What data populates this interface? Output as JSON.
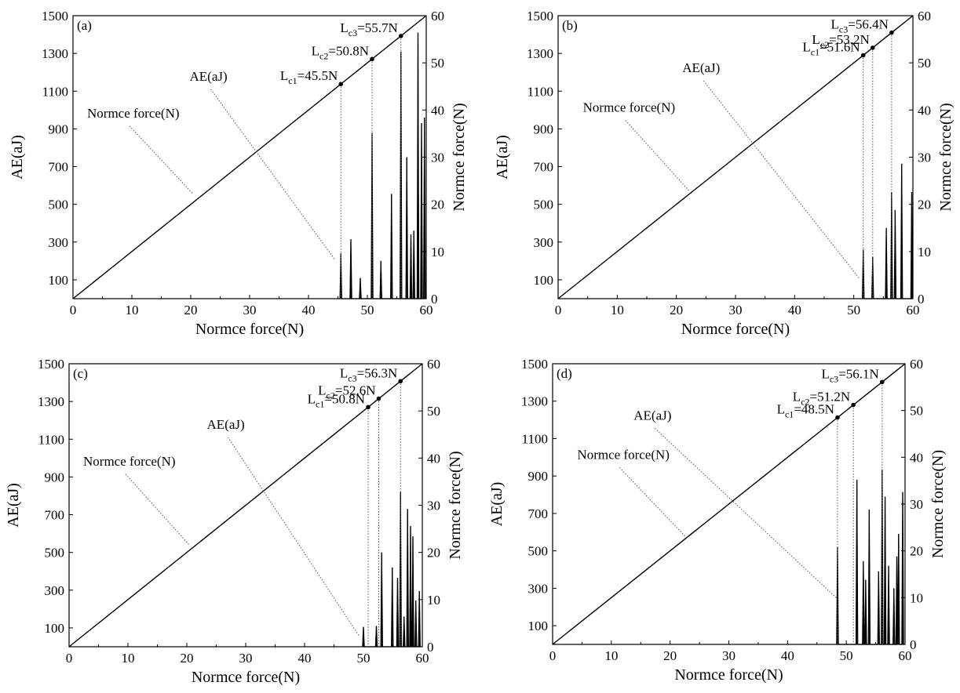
{
  "colors": {
    "line": "#000000",
    "annotation_leader": "#555555",
    "background": "#ffffff"
  },
  "chart_data": [
    {
      "panel": "(a)",
      "type": "line",
      "xlabel": "Normce force(N)",
      "ylabel_left": "AE(aJ)",
      "ylabel_right": "Normce force(N)",
      "xlim": [
        0,
        60
      ],
      "ylim_left": [
        0,
        1500
      ],
      "ylim_right": [
        0,
        60
      ],
      "xticks": [
        0,
        10,
        20,
        30,
        40,
        50,
        60
      ],
      "yticks_left": [
        100,
        300,
        500,
        700,
        900,
        1100,
        1300,
        1500
      ],
      "yticks_right": [
        0,
        10,
        20,
        30,
        40,
        50,
        60
      ],
      "grid": false,
      "annotations": {
        "force_label": "Normce force(N)",
        "ae_label": "AE(aJ)"
      },
      "critical_loads": [
        {
          "sub": "c1",
          "value": 45.5,
          "text": "=45.5N"
        },
        {
          "sub": "c2",
          "value": 50.8,
          "text": "=50.8N"
        },
        {
          "sub": "c3",
          "value": 55.7,
          "text": "=55.7N"
        }
      ],
      "series": [
        {
          "name": "Normce force(N)",
          "axis": "right",
          "x": [
            0,
            60
          ],
          "y": [
            0,
            60
          ]
        },
        {
          "name": "AE(aJ)",
          "axis": "left",
          "peaks": [
            [
              45.5,
              240
            ],
            [
              47.2,
              315
            ],
            [
              48.8,
              110
            ],
            [
              50.8,
              880
            ],
            [
              52.3,
              200
            ],
            [
              54.1,
              555
            ],
            [
              55.7,
              1310
            ],
            [
              56.7,
              750
            ],
            [
              57.4,
              340
            ],
            [
              57.9,
              360
            ],
            [
              58.6,
              1410
            ],
            [
              59.2,
              930
            ],
            [
              59.7,
              960
            ]
          ]
        }
      ]
    },
    {
      "panel": "(b)",
      "type": "line",
      "xlabel": "Normce force(N)",
      "ylabel_left": "AE(aJ)",
      "ylabel_right": "Normce force(N)",
      "xlim": [
        0,
        60
      ],
      "ylim_left": [
        0,
        1500
      ],
      "ylim_right": [
        0,
        60
      ],
      "xticks": [
        0,
        10,
        20,
        30,
        40,
        50,
        60
      ],
      "yticks_left": [
        100,
        300,
        500,
        700,
        900,
        1100,
        1300,
        1500
      ],
      "yticks_right": [
        0,
        10,
        20,
        30,
        40,
        50,
        60
      ],
      "grid": false,
      "annotations": {
        "force_label": "Normce force(N)",
        "ae_label": "AE(aJ)"
      },
      "critical_loads": [
        {
          "sub": "c1",
          "value": 51.6,
          "text": "=51.6N"
        },
        {
          "sub": "c2",
          "value": 53.2,
          "text": "=53.2N"
        },
        {
          "sub": "c3",
          "value": 56.4,
          "text": "=56.4N"
        }
      ],
      "series": [
        {
          "name": "Normce force(N)",
          "axis": "right",
          "x": [
            0,
            60
          ],
          "y": [
            0,
            60
          ]
        },
        {
          "name": "AE(aJ)",
          "axis": "left",
          "peaks": [
            [
              51.6,
              260
            ],
            [
              53.2,
              220
            ],
            [
              55.5,
              375
            ],
            [
              56.4,
              565
            ],
            [
              57.0,
              470
            ],
            [
              58.1,
              715
            ],
            [
              59.8,
              565
            ]
          ]
        }
      ]
    },
    {
      "panel": "(c)",
      "type": "line",
      "xlabel": "Normce force(N)",
      "ylabel_left": "AE(aJ)",
      "ylabel_right": "Normce force(N)",
      "xlim": [
        0,
        60
      ],
      "ylim_left": [
        0,
        1500
      ],
      "ylim_right": [
        0,
        60
      ],
      "xticks": [
        0,
        10,
        20,
        30,
        40,
        50,
        60
      ],
      "yticks_left": [
        100,
        300,
        500,
        700,
        900,
        1100,
        1300,
        1500
      ],
      "yticks_right": [
        0,
        10,
        20,
        30,
        40,
        50,
        60
      ],
      "grid": false,
      "annotations": {
        "force_label": "Normce force(N)",
        "ae_label": "AE(aJ)"
      },
      "critical_loads": [
        {
          "sub": "c1",
          "value": 50.8,
          "text": "=50.8N"
        },
        {
          "sub": "c2",
          "value": 52.6,
          "text": "=52.6N"
        },
        {
          "sub": "c3",
          "value": 56.3,
          "text": "=56.3N"
        }
      ],
      "series": [
        {
          "name": "Normce force(N)",
          "axis": "right",
          "x": [
            0,
            60
          ],
          "y": [
            0,
            60
          ]
        },
        {
          "name": "AE(aJ)",
          "axis": "left",
          "peaks": [
            [
              50.0,
              105
            ],
            [
              52.2,
              110
            ],
            [
              53.1,
              500
            ],
            [
              54.9,
              420
            ],
            [
              55.8,
              365
            ],
            [
              56.3,
              820
            ],
            [
              56.9,
              160
            ],
            [
              57.5,
              730
            ],
            [
              58.0,
              640
            ],
            [
              58.4,
              585
            ],
            [
              58.9,
              245
            ],
            [
              59.5,
              295
            ]
          ]
        }
      ]
    },
    {
      "panel": "(d)",
      "type": "line",
      "xlabel": "Normce force(N)",
      "ylabel_left": "AE(aJ)",
      "ylabel_right": "Normce force(N)",
      "xlim": [
        0,
        60
      ],
      "ylim_left": [
        0,
        1500
      ],
      "ylim_right": [
        0,
        60
      ],
      "xticks": [
        0,
        10,
        20,
        30,
        40,
        50,
        60
      ],
      "yticks_left": [
        100,
        300,
        500,
        700,
        900,
        1100,
        1300,
        1500
      ],
      "yticks_right": [
        0,
        10,
        20,
        30,
        40,
        50,
        60
      ],
      "grid": false,
      "annotations": {
        "force_label": "Normce force(N)",
        "ae_label": "AE(aJ)"
      },
      "critical_loads": [
        {
          "sub": "c1",
          "value": 48.5,
          "text": "=48.5N"
        },
        {
          "sub": "c2",
          "value": 51.2,
          "text": "=51.2N"
        },
        {
          "sub": "c3",
          "value": 56.1,
          "text": "=56.1N"
        }
      ],
      "series": [
        {
          "name": "Normce force(N)",
          "axis": "right",
          "x": [
            0,
            60
          ],
          "y": [
            0,
            60
          ]
        },
        {
          "name": "AE(aJ)",
          "axis": "left",
          "peaks": [
            [
              48.5,
              520
            ],
            [
              51.8,
              880
            ],
            [
              52.9,
              445
            ],
            [
              53.3,
              345
            ],
            [
              53.9,
              720
            ],
            [
              55.5,
              390
            ],
            [
              56.1,
              935
            ],
            [
              56.6,
              790
            ],
            [
              57.2,
              420
            ],
            [
              58.1,
              300
            ],
            [
              58.6,
              470
            ],
            [
              58.9,
              590
            ],
            [
              59.6,
              815
            ]
          ]
        }
      ]
    }
  ]
}
